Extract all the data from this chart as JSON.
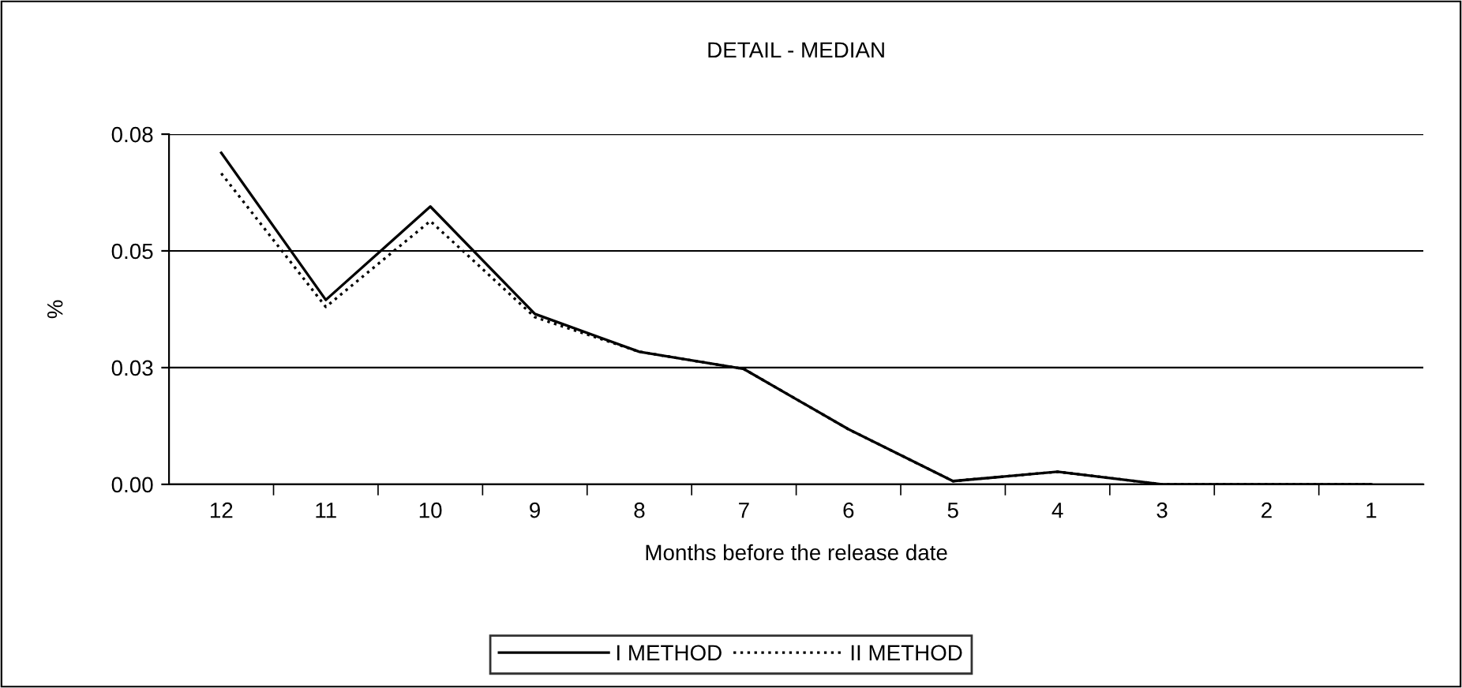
{
  "chart_data": {
    "type": "line",
    "title": "DETAIL - MEDIAN",
    "xlabel": "Months before the release date",
    "ylabel": "%",
    "categories": [
      "12",
      "11",
      "10",
      "9",
      "8",
      "7",
      "6",
      "5",
      "4",
      "3",
      "2",
      "1"
    ],
    "series": [
      {
        "name": "I METHOD",
        "color": "#000000",
        "line_style": "solid",
        "values": [
          0.071,
          0.0395,
          0.0595,
          0.0365,
          0.0284,
          0.0247,
          0.0118,
          0.0007,
          0.0027,
          0.0,
          0.0,
          0.0
        ]
      },
      {
        "name": "II METHOD",
        "color": "#000000",
        "line_style": "dotted",
        "values": [
          0.0666,
          0.038,
          0.0564,
          0.0358,
          0.0284,
          0.0247,
          0.0118,
          0.0007,
          0.0027,
          0.0,
          0.0,
          0.0
        ]
      }
    ],
    "ylim": [
      0,
      0.075
    ],
    "yticks": [
      {
        "value": 0,
        "label": "0.00"
      },
      {
        "value": 0.025,
        "label": "0.03"
      },
      {
        "value": 0.05,
        "label": "0.05"
      },
      {
        "value": 0.075,
        "label": "0.08"
      }
    ],
    "grid": "y",
    "legend": "bottom",
    "marker": "none"
  }
}
